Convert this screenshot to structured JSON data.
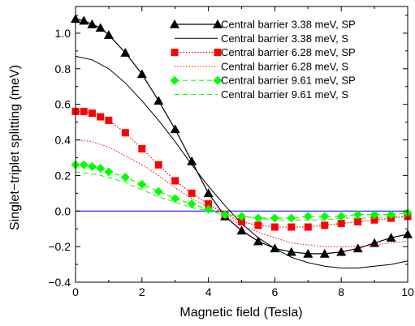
{
  "chart_data": {
    "type": "line",
    "xlabel": "Magnetic field (Tesla)",
    "ylabel": "Singlet−triplet splitting (meV)",
    "xlim": [
      0,
      10
    ],
    "ylim": [
      -0.4,
      1.15
    ],
    "xticks": [
      "0",
      "2",
      "4",
      "6",
      "8",
      "10"
    ],
    "yticks": [
      "−0.4",
      "−0.2",
      "0.0",
      "0.2",
      "0.4",
      "0.6",
      "0.8",
      "1.0"
    ],
    "xtick_values": [
      0,
      2,
      4,
      6,
      8,
      10
    ],
    "ytick_values": [
      -0.4,
      -0.2,
      0.0,
      0.2,
      0.4,
      0.6,
      0.8,
      1.0
    ],
    "grid": false,
    "legend_position": "top-right",
    "zero_line_color": "#0000ff",
    "series": [
      {
        "name": "Central barrier 3.38 meV, SP",
        "color": "#000000",
        "style": "solid",
        "marker": "triangle",
        "x": [
          0,
          0.25,
          0.5,
          0.75,
          1.0,
          1.5,
          2.0,
          2.5,
          3.0,
          3.5,
          4.0,
          4.5,
          5.0,
          5.5,
          6.0,
          6.5,
          7.0,
          7.5,
          8.0,
          8.5,
          9.0,
          9.5,
          10.0
        ],
        "y": [
          1.08,
          1.07,
          1.05,
          1.03,
          0.99,
          0.89,
          0.77,
          0.62,
          0.46,
          0.28,
          0.1,
          -0.03,
          -0.11,
          -0.17,
          -0.21,
          -0.23,
          -0.24,
          -0.24,
          -0.23,
          -0.21,
          -0.18,
          -0.15,
          -0.13
        ]
      },
      {
        "name": "Central barrier 3.38 meV, S",
        "color": "#000000",
        "style": "solid",
        "marker": "none",
        "x": [
          0,
          0.5,
          1.0,
          1.5,
          2.0,
          2.5,
          3.0,
          3.5,
          4.0,
          4.5,
          5.0,
          5.5,
          6.0,
          6.5,
          7.0,
          7.5,
          8.0,
          8.5,
          9.0,
          9.5,
          10.0
        ],
        "y": [
          0.87,
          0.85,
          0.8,
          0.72,
          0.62,
          0.51,
          0.39,
          0.26,
          0.14,
          0.03,
          -0.07,
          -0.15,
          -0.21,
          -0.26,
          -0.29,
          -0.31,
          -0.32,
          -0.32,
          -0.31,
          -0.3,
          -0.28
        ]
      },
      {
        "name": "Central barrier 6.28 meV, SP",
        "color": "#ff0000",
        "style": "dotted",
        "marker": "square",
        "x": [
          0,
          0.25,
          0.5,
          0.75,
          1.0,
          1.5,
          2.0,
          2.5,
          3.0,
          3.5,
          4.0,
          4.5,
          5.0,
          5.5,
          6.0,
          6.5,
          7.0,
          7.5,
          8.0,
          8.5,
          9.0,
          9.5,
          10.0
        ],
        "y": [
          0.56,
          0.56,
          0.55,
          0.53,
          0.51,
          0.44,
          0.35,
          0.26,
          0.17,
          0.1,
          0.04,
          -0.02,
          -0.06,
          -0.08,
          -0.09,
          -0.09,
          -0.09,
          -0.08,
          -0.07,
          -0.06,
          -0.05,
          -0.04,
          -0.03
        ]
      },
      {
        "name": "Central barrier 6.28 meV, S",
        "color": "#ff0000",
        "style": "dotted",
        "marker": "none",
        "x": [
          0,
          0.5,
          1.0,
          1.5,
          2.0,
          2.5,
          3.0,
          3.5,
          4.0,
          4.5,
          5.0,
          5.5,
          6.0,
          6.5,
          7.0,
          7.5,
          8.0,
          8.5,
          9.0,
          9.5,
          10.0
        ],
        "y": [
          0.4,
          0.39,
          0.36,
          0.31,
          0.26,
          0.2,
          0.13,
          0.07,
          0.02,
          -0.03,
          -0.08,
          -0.12,
          -0.15,
          -0.18,
          -0.19,
          -0.2,
          -0.2,
          -0.2,
          -0.19,
          -0.18,
          -0.17
        ]
      },
      {
        "name": "Central barrier 9.61 meV, SP",
        "color": "#00ff00",
        "style": "dashed",
        "marker": "diamond",
        "x": [
          0,
          0.25,
          0.5,
          0.75,
          1.0,
          1.5,
          2.0,
          2.5,
          3.0,
          3.5,
          4.0,
          4.5,
          5.0,
          5.5,
          6.0,
          6.5,
          7.0,
          7.5,
          8.0,
          8.5,
          9.0,
          9.5,
          10.0
        ],
        "y": [
          0.26,
          0.26,
          0.25,
          0.24,
          0.22,
          0.19,
          0.15,
          0.11,
          0.07,
          0.04,
          0.01,
          -0.02,
          -0.03,
          -0.04,
          -0.04,
          -0.04,
          -0.03,
          -0.03,
          -0.03,
          -0.02,
          -0.02,
          -0.02,
          -0.01
        ]
      },
      {
        "name": "Central barrier 9.61 meV, S",
        "color": "#00ff00",
        "style": "dashed",
        "marker": "none",
        "x": [
          0,
          0.5,
          1.0,
          1.5,
          2.0,
          2.5,
          3.0,
          3.5,
          4.0,
          4.5,
          5.0,
          5.5,
          6.0,
          6.5,
          7.0,
          7.5,
          8.0,
          8.5,
          9.0,
          9.5,
          10.0
        ],
        "y": [
          0.22,
          0.21,
          0.19,
          0.16,
          0.12,
          0.08,
          0.05,
          0.02,
          0.0,
          -0.02,
          -0.03,
          -0.04,
          -0.05,
          -0.05,
          -0.05,
          -0.05,
          -0.04,
          -0.04,
          -0.04,
          -0.03,
          -0.03
        ]
      }
    ]
  }
}
